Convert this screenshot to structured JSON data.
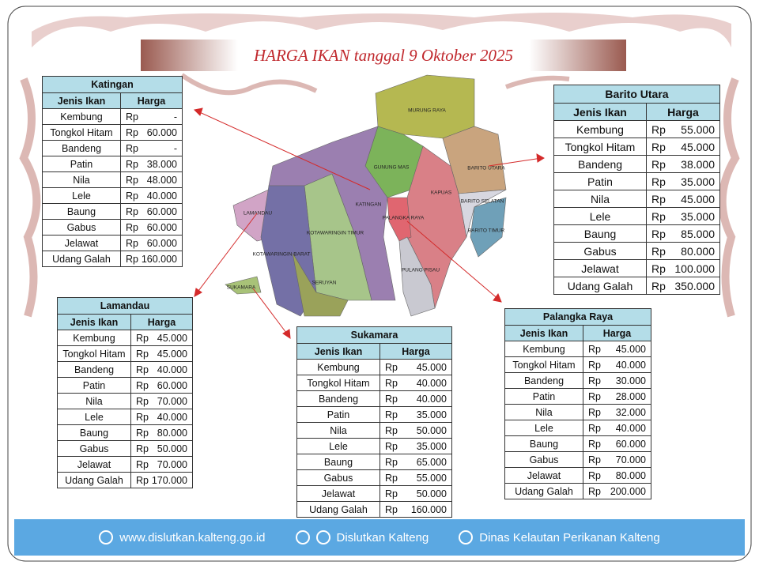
{
  "header": {
    "title": "HARGA IKAN tanggal 9 Oktober 2025"
  },
  "map": {
    "regions": [
      "MURUNG RAYA",
      "GUNUNG MAS",
      "BARITO UTARA",
      "KAPUAS",
      "BARITO SELATAN",
      "BARITO TIMUR",
      "KATINGAN",
      "PALANGKA RAYA",
      "LAMANDAU",
      "KOTAWARINGIN TIMUR",
      "KOTAWARINGIN BARAT",
      "SERUYAN",
      "PULANG PISAU",
      "SUKAMARA"
    ]
  },
  "tables": [
    {
      "region": "Katingan",
      "columns": [
        "Jenis Ikan",
        "Harga"
      ],
      "rows": [
        [
          "Kembung",
          "Rp",
          "-"
        ],
        [
          "Tongkol Hitam",
          "Rp",
          "60.000"
        ],
        [
          "Bandeng",
          "Rp",
          "-"
        ],
        [
          "Patin",
          "Rp",
          "38.000"
        ],
        [
          "Nila",
          "Rp",
          "48.000"
        ],
        [
          "Lele",
          "Rp",
          "40.000"
        ],
        [
          "Baung",
          "Rp",
          "60.000"
        ],
        [
          "Gabus",
          "Rp",
          "60.000"
        ],
        [
          "Jelawat",
          "Rp",
          "60.000"
        ],
        [
          "Udang Galah",
          "Rp",
          "160.000"
        ]
      ]
    },
    {
      "region": "Barito Utara",
      "columns": [
        "Jenis Ikan",
        "Harga"
      ],
      "rows": [
        [
          "Kembung",
          "Rp",
          "55.000"
        ],
        [
          "Tongkol Hitam",
          "Rp",
          "45.000"
        ],
        [
          "Bandeng",
          "Rp",
          "38.000"
        ],
        [
          "Patin",
          "Rp",
          "35.000"
        ],
        [
          "Nila",
          "Rp",
          "45.000"
        ],
        [
          "Lele",
          "Rp",
          "35.000"
        ],
        [
          "Baung",
          "Rp",
          "85.000"
        ],
        [
          "Gabus",
          "Rp",
          "80.000"
        ],
        [
          "Jelawat",
          "Rp",
          "100.000"
        ],
        [
          "Udang Galah",
          "Rp",
          "350.000"
        ]
      ]
    },
    {
      "region": "Lamandau",
      "columns": [
        "Jenis Ikan",
        "Harga"
      ],
      "rows": [
        [
          "Kembung",
          "Rp",
          "45.000"
        ],
        [
          "Tongkol Hitam",
          "Rp",
          "45.000"
        ],
        [
          "Bandeng",
          "Rp",
          "40.000"
        ],
        [
          "Patin",
          "Rp",
          "60.000"
        ],
        [
          "Nila",
          "Rp",
          "70.000"
        ],
        [
          "Lele",
          "Rp",
          "40.000"
        ],
        [
          "Baung",
          "Rp",
          "80.000"
        ],
        [
          "Gabus",
          "Rp",
          "50.000"
        ],
        [
          "Jelawat",
          "Rp",
          "70.000"
        ],
        [
          "Udang Galah",
          "Rp",
          "170.000"
        ]
      ]
    },
    {
      "region": "Sukamara",
      "columns": [
        "Jenis Ikan",
        "Harga"
      ],
      "rows": [
        [
          "Kembung",
          "Rp",
          "45.000"
        ],
        [
          "Tongkol Hitam",
          "Rp",
          "40.000"
        ],
        [
          "Bandeng",
          "Rp",
          "40.000"
        ],
        [
          "Patin",
          "Rp",
          "35.000"
        ],
        [
          "Nila",
          "Rp",
          "50.000"
        ],
        [
          "Lele",
          "Rp",
          "35.000"
        ],
        [
          "Baung",
          "Rp",
          "65.000"
        ],
        [
          "Gabus",
          "Rp",
          "55.000"
        ],
        [
          "Jelawat",
          "Rp",
          "50.000"
        ],
        [
          "Udang Galah",
          "Rp",
          "160.000"
        ]
      ]
    },
    {
      "region": "Palangka Raya",
      "columns": [
        "Jenis Ikan",
        "Harga"
      ],
      "rows": [
        [
          "Kembung",
          "Rp",
          "45.000"
        ],
        [
          "Tongkol Hitam",
          "Rp",
          "40.000"
        ],
        [
          "Bandeng",
          "Rp",
          "30.000"
        ],
        [
          "Patin",
          "Rp",
          "28.000"
        ],
        [
          "Nila",
          "Rp",
          "32.000"
        ],
        [
          "Lele",
          "Rp",
          "40.000"
        ],
        [
          "Baung",
          "Rp",
          "60.000"
        ],
        [
          "Gabus",
          "Rp",
          "70.000"
        ],
        [
          "Jelawat",
          "Rp",
          "80.000"
        ],
        [
          "Udang Galah",
          "Rp",
          "200.000"
        ]
      ]
    }
  ],
  "footer": {
    "website": "www.dislutkan.kalteng.go.id",
    "social": "Dislutkan Kalteng",
    "facebook": "Dinas Kelautan Perikanan Kalteng"
  }
}
